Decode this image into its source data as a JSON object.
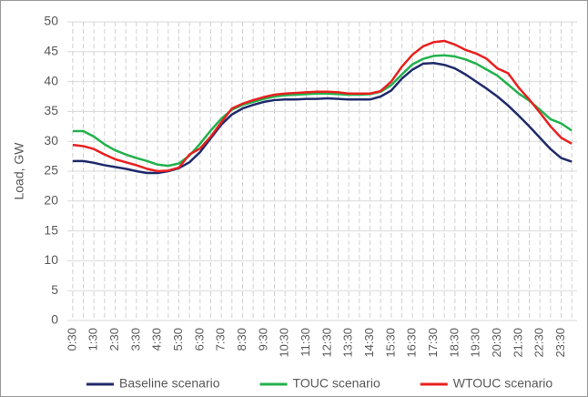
{
  "chart_data": {
    "type": "line",
    "y_label": "Load, GW",
    "categories": [
      "0:30",
      null,
      "1:30",
      null,
      "2:30",
      null,
      "3:30",
      null,
      "4:30",
      null,
      "5:30",
      null,
      "6:30",
      null,
      "7:30",
      null,
      "8:30",
      null,
      "9:30",
      null,
      "10:30",
      null,
      "11:30",
      null,
      "12:30",
      null,
      "13:30",
      null,
      "14:30",
      null,
      "15:30",
      null,
      "16:30",
      null,
      "17:30",
      null,
      "18:30",
      null,
      "19:30",
      null,
      "20:30",
      null,
      "21:30",
      null,
      "22:30",
      null,
      "23:30",
      null
    ],
    "series": [
      {
        "name": "Baseline scenario",
        "color": "#1f2a6b",
        "values": [
          26.7,
          26.7,
          26.4,
          26.0,
          25.7,
          25.4,
          25.0,
          24.7,
          24.7,
          25.0,
          25.5,
          26.5,
          28.2,
          30.5,
          32.8,
          34.5,
          35.5,
          36.1,
          36.6,
          36.9,
          37.0,
          37.0,
          37.1,
          37.1,
          37.2,
          37.1,
          37.0,
          37.0,
          37.0,
          37.5,
          38.5,
          40.5,
          42.0,
          43.0,
          43.1,
          42.8,
          42.2,
          41.2,
          40.0,
          38.8,
          37.5,
          36.0,
          34.3,
          32.5,
          30.6,
          28.7,
          27.2,
          26.6
        ]
      },
      {
        "name": "TOUC scenario",
        "color": "#22b14c",
        "values": [
          31.7,
          31.7,
          30.8,
          29.5,
          28.5,
          27.8,
          27.2,
          26.7,
          26.1,
          25.9,
          26.3,
          27.6,
          29.6,
          31.8,
          33.8,
          35.3,
          36.1,
          36.6,
          37.1,
          37.5,
          37.7,
          37.8,
          37.9,
          38.0,
          38.0,
          37.9,
          37.8,
          37.8,
          37.9,
          38.3,
          39.4,
          41.2,
          42.9,
          43.8,
          44.3,
          44.4,
          44.2,
          43.7,
          43.0,
          42.0,
          41.0,
          39.5,
          38.0,
          36.8,
          35.3,
          33.7,
          33.0,
          31.8
        ]
      },
      {
        "name": "WTOUC scenario",
        "color": "#e8201f",
        "values": [
          29.4,
          29.2,
          28.7,
          27.8,
          27.0,
          26.5,
          26.0,
          25.4,
          25.0,
          25.1,
          25.6,
          27.8,
          28.8,
          30.8,
          33.2,
          35.5,
          36.3,
          36.9,
          37.4,
          37.8,
          38.0,
          38.1,
          38.2,
          38.3,
          38.3,
          38.2,
          38.0,
          38.0,
          38.0,
          38.4,
          40.0,
          42.5,
          44.5,
          45.9,
          46.6,
          46.8,
          46.2,
          45.3,
          44.7,
          43.8,
          42.2,
          41.4,
          39.0,
          37.0,
          34.8,
          32.5,
          30.6,
          29.6
        ]
      }
    ],
    "ylim": [
      0,
      50
    ],
    "yticks": [
      0,
      5,
      10,
      15,
      20,
      25,
      30,
      35,
      40,
      45,
      50
    ],
    "grid": true,
    "legend": "bottom"
  }
}
